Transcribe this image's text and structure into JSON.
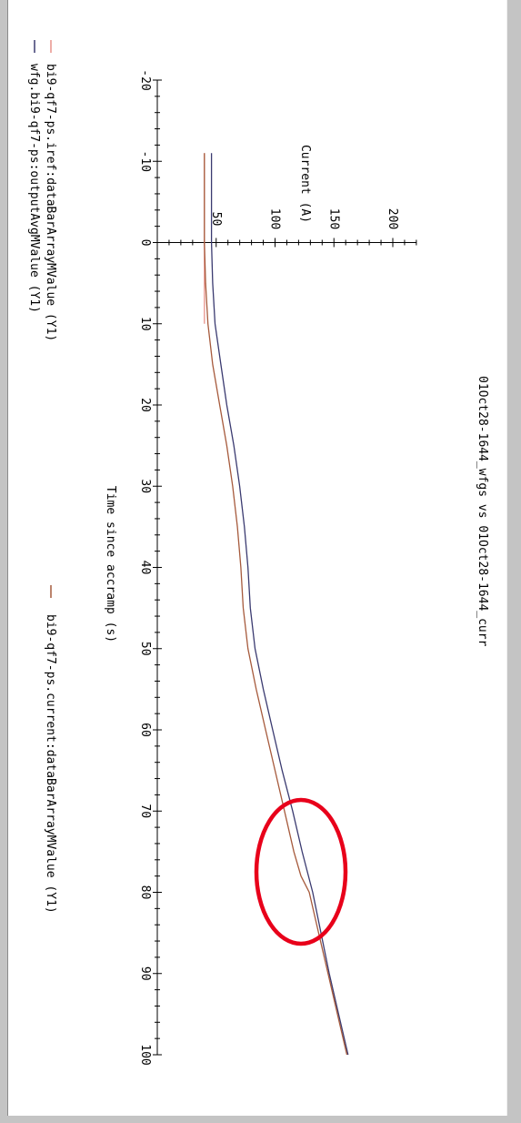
{
  "chart_data": {
    "type": "line",
    "title": "01Oct28-1644_wfgs vs 01Oct28-1644_curr",
    "xlabel": "Time since accramp (s)",
    "ylabel": "Current (A)",
    "xlim": [
      -20,
      100
    ],
    "ylim": [
      0,
      200
    ],
    "x_ticks": [
      -20,
      -10,
      0,
      10,
      20,
      30,
      40,
      50,
      60,
      70,
      80,
      90,
      100
    ],
    "y_ticks": [
      50,
      100,
      150,
      200
    ],
    "grid": false,
    "legend_position": "bottom",
    "series": [
      {
        "name": "bi9-qf7-ps.iref:dataBarArrayMValue (Y1)",
        "color": "#e8938a",
        "x": [
          -11,
          -5,
          0,
          2,
          4,
          6,
          8,
          10
        ],
        "y": [
          40,
          40,
          40,
          40,
          40,
          40,
          40,
          40
        ]
      },
      {
        "name": "wfg.bi9-qf7-ps:outputAvgMValue (Y1)",
        "color": "#3a3a70",
        "x": [
          -11,
          -5,
          0,
          5,
          10,
          15,
          20,
          25,
          30,
          35,
          40,
          45,
          50,
          55,
          60,
          65,
          70,
          75,
          80,
          85,
          90,
          95,
          100
        ],
        "y": [
          46,
          46,
          46,
          47,
          49,
          54,
          59,
          65,
          70,
          74,
          77,
          79,
          83,
          90,
          98,
          106,
          115,
          123,
          132,
          139,
          146,
          154,
          162
        ]
      },
      {
        "name": "bi9-qf7-ps.current:dataBarArrayMValue (Y1)",
        "color": "#a65a3c",
        "x": [
          -11,
          -5,
          0,
          5,
          10,
          15,
          20,
          25,
          30,
          35,
          40,
          45,
          50,
          55,
          60,
          65,
          70,
          75,
          78,
          80,
          85,
          90,
          95,
          100
        ],
        "y": [
          40,
          40,
          40,
          41,
          43,
          47,
          53,
          59,
          64,
          68,
          71,
          73,
          77,
          84,
          92,
          100,
          108,
          116,
          122,
          129,
          137,
          145,
          153,
          161
        ]
      }
    ],
    "annotation": "red ellipse near x≈78, y≈120"
  },
  "legend": {
    "left": [
      {
        "label": "bi9-qf7-ps.iref:dataBarArrayMValue (Y1)",
        "color": "#e8938a"
      },
      {
        "label": "wfg.bi9-qf7-ps:outputAvgMValue (Y1)",
        "color": "#3a3a70"
      }
    ],
    "right": {
      "label": "bi9-qf7-ps.current:dataBarArrayMValue (Y1)",
      "color": "#a65a3c"
    }
  }
}
